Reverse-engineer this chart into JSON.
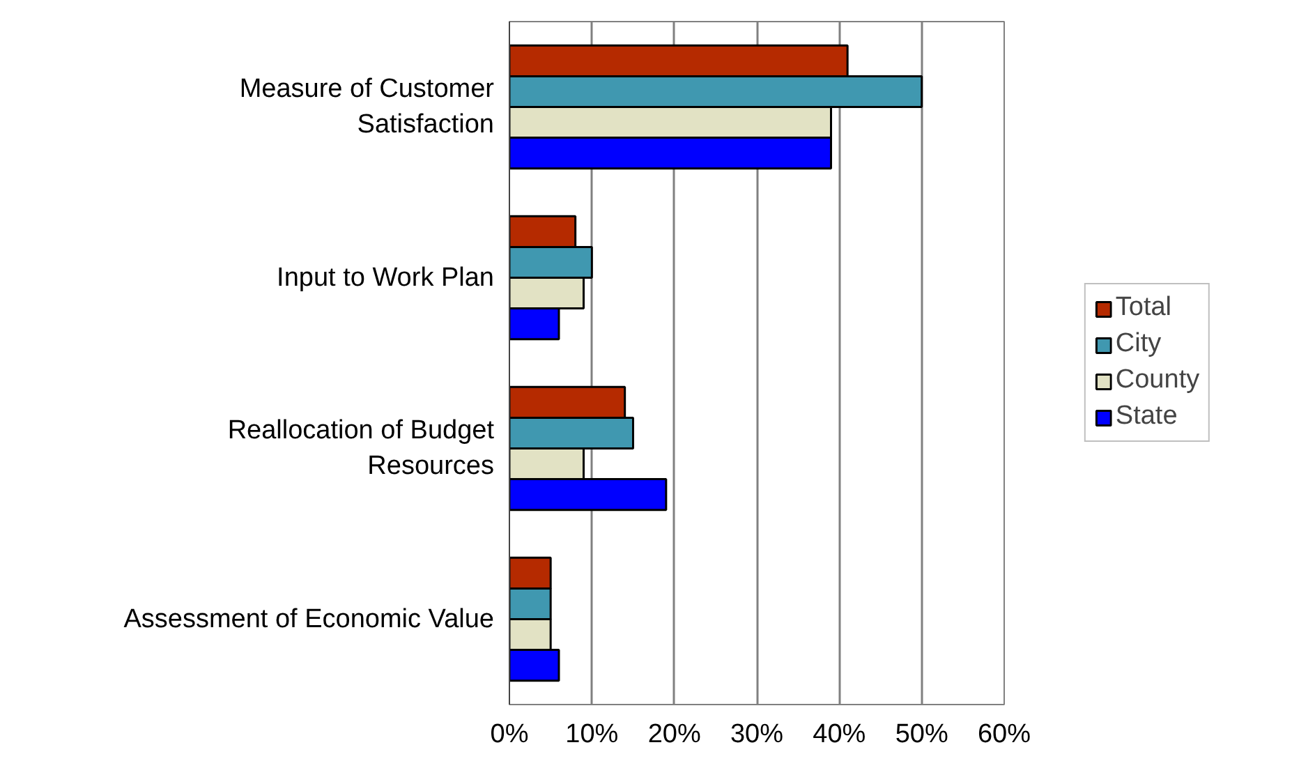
{
  "chart_data": {
    "type": "bar",
    "orientation": "horizontal",
    "categories": [
      "Measure of Customer\nSatisfaction",
      "Input to Work Plan",
      "Reallocation of Budget\nResources",
      "Assessment of Economic Value"
    ],
    "series": [
      {
        "name": "Total",
        "color": "#b52a00",
        "values": [
          41,
          8,
          14,
          5
        ]
      },
      {
        "name": "City",
        "color": "#4098b0",
        "values": [
          50,
          10,
          15,
          5
        ]
      },
      {
        "name": "County",
        "color": "#e2e2c4",
        "values": [
          39,
          9,
          9,
          5
        ]
      },
      {
        "name": "State",
        "color": "#0000ff",
        "values": [
          39,
          6,
          19,
          6
        ]
      }
    ],
    "xlim": [
      0,
      60
    ],
    "xticks": [
      {
        "value": 0,
        "label": "0%"
      },
      {
        "value": 10,
        "label": "10%"
      },
      {
        "value": 20,
        "label": "20%"
      },
      {
        "value": 30,
        "label": "30%"
      },
      {
        "value": 40,
        "label": "40%"
      },
      {
        "value": 50,
        "label": "50%"
      },
      {
        "value": 60,
        "label": "60%"
      }
    ],
    "grid": "x",
    "legend": "right"
  }
}
